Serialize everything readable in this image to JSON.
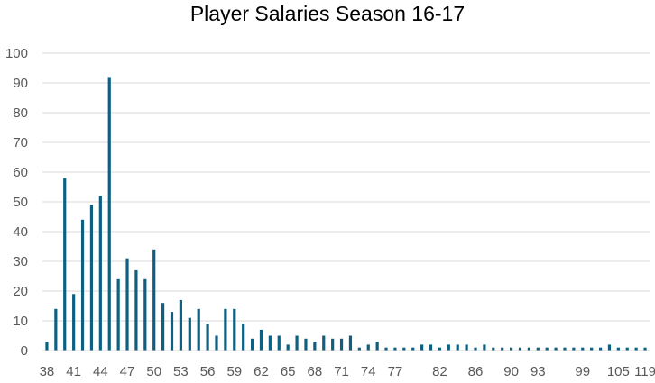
{
  "chart_data": {
    "type": "bar",
    "title": "Player Salaries Season 16-17",
    "xlabel": "",
    "ylabel": "",
    "ylim": [
      0,
      100
    ],
    "yticks": [
      0,
      10,
      20,
      30,
      40,
      50,
      60,
      70,
      80,
      90,
      100
    ],
    "grid": true,
    "legend": "none",
    "bar_color": "#0f6080",
    "categories": [
      "38",
      "39",
      "40",
      "41",
      "42",
      "43",
      "44",
      "45",
      "46",
      "47",
      "48",
      "49",
      "50",
      "51",
      "52",
      "53",
      "54",
      "55",
      "56",
      "57",
      "58",
      "59",
      "60",
      "61",
      "62",
      "63",
      "64",
      "65",
      "66",
      "67",
      "68",
      "69",
      "70",
      "71",
      "72",
      "73",
      "74",
      "75",
      "76",
      "77",
      "78",
      "79",
      "80",
      "81",
      "82",
      "83",
      "84",
      "85",
      "86",
      "87",
      "88",
      "89",
      "90",
      "91",
      "92",
      "93",
      "95",
      "96",
      "97",
      "98",
      "99",
      "100",
      "101",
      "102",
      "105",
      "108",
      "110",
      "119"
    ],
    "values": [
      3,
      14,
      58,
      19,
      44,
      49,
      52,
      92,
      24,
      31,
      27,
      24,
      34,
      16,
      13,
      17,
      11,
      14,
      9,
      5,
      14,
      14,
      9,
      4,
      7,
      5,
      5,
      2,
      5,
      4,
      3,
      5,
      4,
      4,
      5,
      1,
      2,
      3,
      1,
      1,
      1,
      1,
      2,
      2,
      1,
      2,
      2,
      2,
      1,
      2,
      1,
      1,
      1,
      1,
      1,
      1,
      1,
      1,
      1,
      1,
      1,
      1,
      1,
      2,
      1,
      1,
      1,
      1
    ],
    "x_tick_labels": [
      "38",
      "41",
      "44",
      "47",
      "50",
      "53",
      "56",
      "59",
      "62",
      "65",
      "68",
      "71",
      "74",
      "77",
      "82",
      "86",
      "90",
      "93",
      "99",
      "105",
      "119"
    ]
  }
}
